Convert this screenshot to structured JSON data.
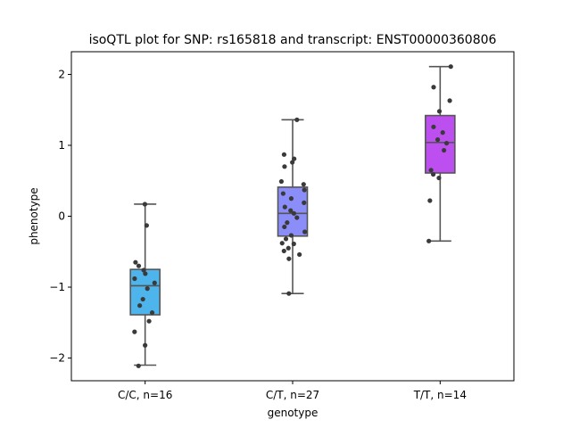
{
  "chart_data": {
    "type": "box",
    "title": "isoQTL plot for SNP: rs165818 and transcript: ENST00000360806",
    "xlabel": "genotype",
    "ylabel": "phenotype",
    "ylim": [
      -2.32,
      2.32
    ],
    "yticks": [
      -2,
      -1,
      0,
      1,
      2
    ],
    "categories": [
      "C/C, n=16",
      "C/T, n=27",
      "T/T, n=14"
    ],
    "colors": [
      "#4db4ec",
      "#8b8ef8",
      "#bd4ff0"
    ],
    "boxes": [
      {
        "whislo": -2.1,
        "q1": -1.39,
        "med": -0.98,
        "q3": -0.75,
        "whishi": 0.17
      },
      {
        "whislo": -1.09,
        "q1": -0.28,
        "med": 0.04,
        "q3": 0.41,
        "whishi": 1.36
      },
      {
        "whislo": -0.35,
        "q1": 0.61,
        "med": 1.04,
        "q3": 1.42,
        "whishi": 2.11
      }
    ],
    "points": [
      [
        0.17,
        -0.13,
        -0.65,
        -0.7,
        -0.76,
        -0.81,
        -0.88,
        -0.94,
        -1.02,
        -1.17,
        -1.26,
        -1.36,
        -1.48,
        -1.63,
        -1.82,
        -2.11
      ],
      [
        1.36,
        0.87,
        0.81,
        0.76,
        0.7,
        0.49,
        0.45,
        0.37,
        0.32,
        0.25,
        0.19,
        0.13,
        0.08,
        0.04,
        -0.02,
        -0.09,
        -0.15,
        -0.22,
        -0.27,
        -0.32,
        -0.39,
        -0.45,
        -0.49,
        -0.54,
        -0.6,
        -1.09,
        -0.38
      ],
      [
        2.11,
        1.82,
        1.63,
        1.48,
        1.26,
        1.18,
        1.08,
        1.03,
        0.93,
        0.65,
        0.59,
        0.54,
        0.22,
        -0.35
      ]
    ],
    "grid": false,
    "legend": "none"
  }
}
